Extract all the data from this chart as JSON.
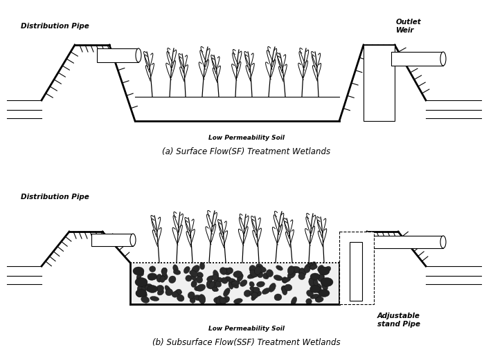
{
  "title_a": "(a) Surface Flow(SF) Treatment Wetlands",
  "title_b": "(b) Subsurface Flow(SSF) Treatment Wetlands",
  "label_low_perm": "Low Permeability Soil",
  "label_dist_pipe": "Distribution Pipe",
  "label_outlet_weir": "Outlet\nWeir",
  "label_adj_stand": "Adjustable\nstand Pipe",
  "bg_color": "#ffffff",
  "line_color": "#000000",
  "font_size_title": 8.5,
  "font_size_label": 7.5,
  "font_size_small": 6.5
}
